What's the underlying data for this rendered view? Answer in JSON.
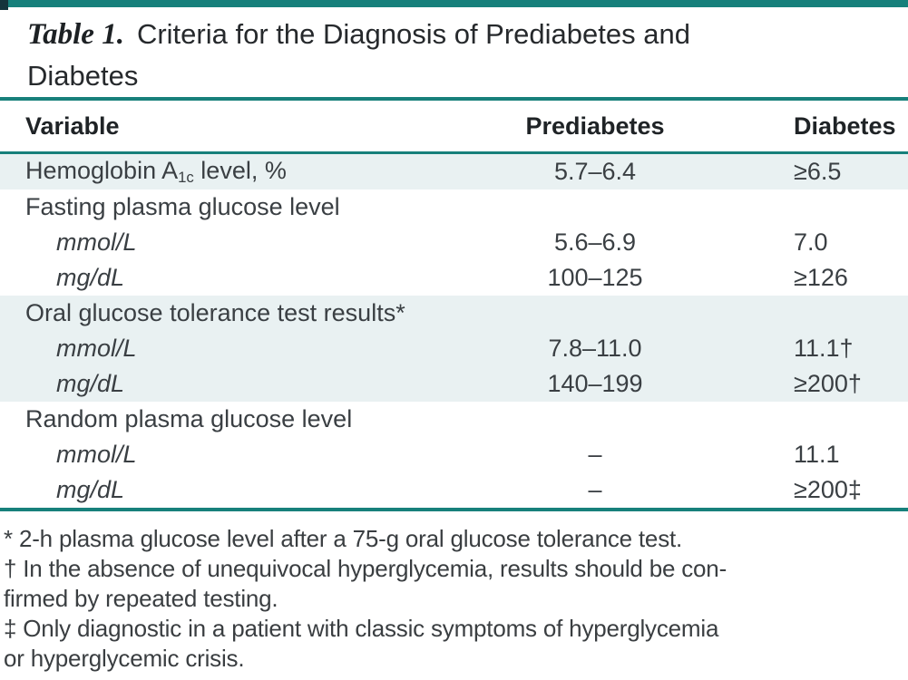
{
  "colors": {
    "accent_teal": "#17807b",
    "row_shade": "#e9f1f2"
  },
  "title": {
    "label": "Table 1.",
    "line1": "Criteria for the Diagnosis of Prediabetes and",
    "line2": "Diabetes"
  },
  "table": {
    "headers": {
      "variable": "Variable",
      "prediabetes": "Prediabetes",
      "diabetes": "Diabetes"
    },
    "rows": [
      {
        "variable_pre": "Hemoglobin A",
        "variable_sub": "1c",
        "variable_post": " level, %",
        "prediabetes": "5.7–6.4",
        "diabetes": "≥6.5"
      },
      {
        "variable": "Fasting plasma glucose level",
        "prediabetes": "",
        "diabetes": ""
      },
      {
        "variable": "mmol/L",
        "prediabetes": "5.6–6.9",
        "diabetes": "7.0"
      },
      {
        "variable": "mg/dL",
        "prediabetes": "100–125",
        "diabetes": "≥126"
      },
      {
        "variable": "Oral glucose tolerance test results*",
        "prediabetes": "",
        "diabetes": ""
      },
      {
        "variable": "mmol/L",
        "prediabetes": "7.8–11.0",
        "diabetes": "11.1†"
      },
      {
        "variable": "mg/dL",
        "prediabetes": "140–199",
        "diabetes": "≥200†"
      },
      {
        "variable": "Random plasma glucose level",
        "prediabetes": "",
        "diabetes": ""
      },
      {
        "variable": "mmol/L",
        "prediabetes": "–",
        "diabetes": "11.1"
      },
      {
        "variable": "mg/dL",
        "prediabetes": "–",
        "diabetes": "≥200‡"
      }
    ]
  },
  "footnotes": {
    "lines": [
      "* 2-h plasma glucose level after a 75-g oral glucose tolerance test.",
      "† In the absence of unequivocal hyperglycemia, results should be con-",
      "firmed by repeated testing.",
      "‡ Only diagnostic in a patient with classic symptoms of hyperglycemia",
      "or hyperglycemic crisis."
    ]
  }
}
